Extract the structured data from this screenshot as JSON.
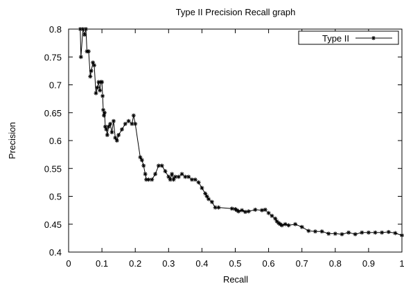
{
  "chart_data": {
    "type": "line",
    "title": "Type II Precision  Recall graph",
    "xlabel": "Recall",
    "ylabel": "Precision",
    "xlim": [
      0,
      1
    ],
    "ylim": [
      0.4,
      0.8
    ],
    "x_ticks": [
      "0",
      "0.1",
      "0.2",
      "0.3",
      "0.4",
      "0.5",
      "0.6",
      "0.7",
      "0.8",
      "0.9",
      "1"
    ],
    "y_ticks": [
      "0.4",
      "0.45",
      "0.5",
      "0.55",
      "0.6",
      "0.65",
      "0.7",
      "0.75",
      "0.8"
    ],
    "grid": false,
    "legend_position": "top-right",
    "series": [
      {
        "name": "Type II",
        "marker": "asterisk",
        "color": "#000000",
        "x": [
          0.035,
          0.037,
          0.043,
          0.048,
          0.052,
          0.055,
          0.06,
          0.065,
          0.068,
          0.073,
          0.077,
          0.082,
          0.086,
          0.09,
          0.094,
          0.097,
          0.1,
          0.102,
          0.104,
          0.106,
          0.108,
          0.11,
          0.113,
          0.116,
          0.12,
          0.125,
          0.13,
          0.135,
          0.14,
          0.145,
          0.15,
          0.16,
          0.17,
          0.18,
          0.19,
          0.195,
          0.2,
          0.215,
          0.22,
          0.225,
          0.23,
          0.233,
          0.24,
          0.25,
          0.26,
          0.27,
          0.28,
          0.29,
          0.3,
          0.305,
          0.31,
          0.315,
          0.32,
          0.33,
          0.34,
          0.35,
          0.36,
          0.37,
          0.38,
          0.39,
          0.4,
          0.41,
          0.415,
          0.42,
          0.43,
          0.44,
          0.45,
          0.49,
          0.5,
          0.505,
          0.51,
          0.52,
          0.53,
          0.54,
          0.56,
          0.58,
          0.59,
          0.6,
          0.61,
          0.62,
          0.625,
          0.63,
          0.635,
          0.64,
          0.65,
          0.66,
          0.68,
          0.7,
          0.72,
          0.74,
          0.76,
          0.78,
          0.8,
          0.82,
          0.84,
          0.86,
          0.88,
          0.9,
          0.92,
          0.94,
          0.96,
          0.98,
          1.0
        ],
        "y": [
          0.8,
          0.75,
          0.8,
          0.79,
          0.8,
          0.76,
          0.76,
          0.715,
          0.725,
          0.74,
          0.735,
          0.685,
          0.695,
          0.705,
          0.69,
          0.705,
          0.705,
          0.68,
          0.655,
          0.645,
          0.65,
          0.625,
          0.62,
          0.61,
          0.625,
          0.63,
          0.615,
          0.635,
          0.605,
          0.6,
          0.61,
          0.62,
          0.63,
          0.635,
          0.63,
          0.645,
          0.63,
          0.57,
          0.565,
          0.555,
          0.54,
          0.53,
          0.53,
          0.53,
          0.54,
          0.555,
          0.555,
          0.545,
          0.535,
          0.53,
          0.54,
          0.53,
          0.535,
          0.535,
          0.54,
          0.535,
          0.535,
          0.53,
          0.53,
          0.525,
          0.515,
          0.505,
          0.5,
          0.495,
          0.49,
          0.48,
          0.48,
          0.478,
          0.477,
          0.475,
          0.473,
          0.475,
          0.472,
          0.473,
          0.476,
          0.475,
          0.476,
          0.47,
          0.465,
          0.46,
          0.455,
          0.452,
          0.45,
          0.448,
          0.45,
          0.448,
          0.45,
          0.445,
          0.438,
          0.437,
          0.437,
          0.433,
          0.433,
          0.432,
          0.435,
          0.432,
          0.435,
          0.435,
          0.435,
          0.435,
          0.436,
          0.434,
          0.43
        ]
      }
    ]
  }
}
